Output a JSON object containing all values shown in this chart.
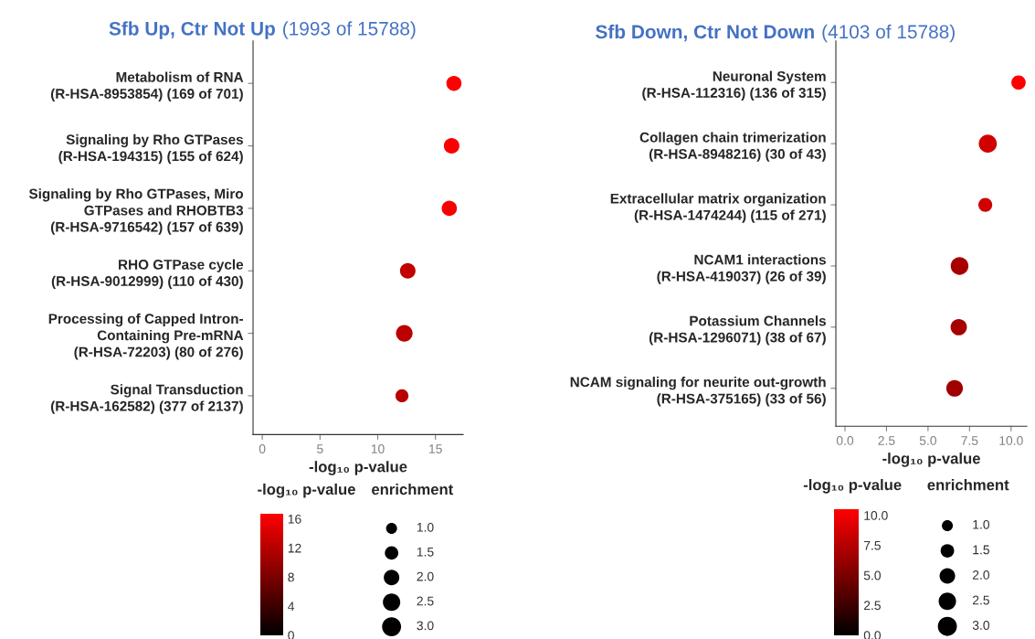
{
  "chart_data": [
    {
      "type": "bubble",
      "orientation": "horizontal",
      "title": "Sfb Up, Ctr Not Up",
      "subtitle": "(1993 of 15788)",
      "categories": [
        "Metabolism of RNA\n(R-HSA-8953854) (169 of 701)",
        "Signaling by Rho GTPases\n(R-HSA-194315) (155 of 624)",
        "Signaling by Rho GTPases, Miro\nGTPases and RHOBTB3\n(R-HSA-9716542) (157 of 639)",
        "RHO GTPase cycle\n(R-HSA-9012999) (110 of 430)",
        "Processing of Capped Intron-\nContaining Pre-mRNA\n(R-HSA-72203) (80 of 276)",
        "Signal Transduction\n(R-HSA-162582) (377 of 2137)"
      ],
      "values": [
        16.6,
        16.4,
        16.2,
        12.6,
        12.3,
        12.1
      ],
      "cvalues": [
        16.6,
        16.4,
        16.2,
        12.6,
        12.3,
        12.1
      ],
      "sizes": [
        1.9,
        2.0,
        1.9,
        2.0,
        2.3,
        1.4
      ],
      "xlabel": "-log₁₀ p-value",
      "xlim": [
        -0.8,
        17.4
      ],
      "xticks": [
        0,
        5,
        10,
        15
      ],
      "clabel": "-log₁₀ p-value",
      "clim": [
        0,
        16.7
      ],
      "cticks": [
        0,
        4,
        8,
        12,
        16
      ],
      "legend_title": "enrichment",
      "size_legend": [
        {
          "value": 1.0,
          "label": "1.0"
        },
        {
          "value": 1.5,
          "label": "1.5"
        },
        {
          "value": 2.0,
          "label": "2.0"
        },
        {
          "value": 2.5,
          "label": "2.5"
        },
        {
          "value": 3.0,
          "label": "3.0"
        }
      ]
    },
    {
      "type": "bubble",
      "orientation": "horizontal",
      "title": "Sfb Down, Ctr Not Down",
      "subtitle": "(4103 of 15788)",
      "categories": [
        "Neuronal System\n(R-HSA-112316) (136 of 315)",
        "Collagen chain trimerization\n(R-HSA-8948216) (30 of 43)",
        "Extracellular matrix organization\n(R-HSA-1474244) (115 of 271)",
        "NCAM1 interactions\n(R-HSA-419037) (26 of 39)",
        "Potassium Channels\n(R-HSA-1296071) (38 of 67)",
        "NCAM signaling for neurite out-growth\n(R-HSA-375165) (33 of 56)"
      ],
      "values": [
        10.45,
        8.6,
        8.45,
        6.9,
        6.85,
        6.6
      ],
      "cvalues": [
        10.45,
        8.6,
        8.45,
        6.9,
        6.85,
        6.6
      ],
      "sizes": [
        1.7,
        2.7,
        1.6,
        2.6,
        2.2,
        2.3
      ],
      "xlabel": "-log₁₀ p-value",
      "xlim": [
        -0.55,
        10.95
      ],
      "xticks": [
        {
          "value": 0,
          "label": "0.0"
        },
        {
          "value": 2.5,
          "label": "2.5"
        },
        {
          "value": 5,
          "label": "5.0"
        },
        {
          "value": 7.5,
          "label": "7.5"
        },
        {
          "value": 10,
          "label": "10.0"
        }
      ],
      "clabel": "-log₁₀ p-value",
      "clim": [
        0,
        10.5
      ],
      "cticks": [
        {
          "value": 0,
          "label": "0.0"
        },
        {
          "value": 2.5,
          "label": "2.5"
        },
        {
          "value": 5,
          "label": "5.0"
        },
        {
          "value": 7.5,
          "label": "7.5"
        },
        {
          "value": 10,
          "label": "10.0"
        }
      ],
      "legend_title": "enrichment",
      "size_legend": [
        {
          "value": 1.0,
          "label": "1.0"
        },
        {
          "value": 1.5,
          "label": "1.5"
        },
        {
          "value": 2.0,
          "label": "2.0"
        },
        {
          "value": 2.5,
          "label": "2.5"
        },
        {
          "value": 3.0,
          "label": "3.0"
        }
      ]
    }
  ]
}
